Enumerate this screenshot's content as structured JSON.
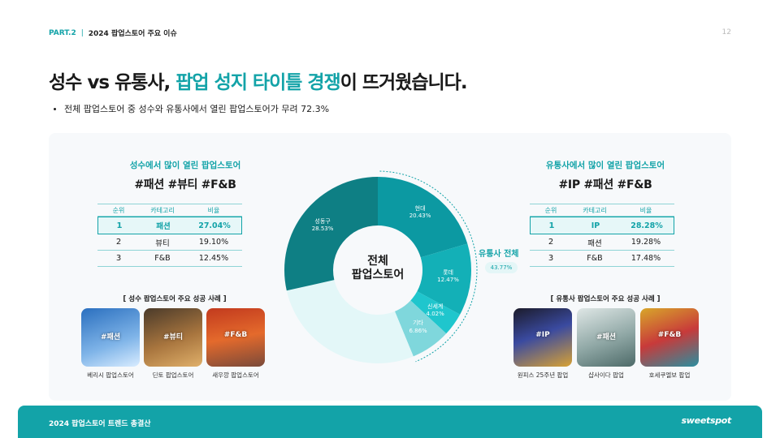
{
  "header": {
    "part": "PART.2",
    "separator": "|",
    "topic": "2024 팝업스토어 주요 이슈",
    "page": "12"
  },
  "title": {
    "pre": "성수 vs 유통사, ",
    "highlight": "팝업 성지 타이틀 경쟁",
    "post": "이 뜨거웠습니다."
  },
  "bullet": "전체 팝업스토어 중 성수와 유통사에서 열린 팝업스토어가 무려 72.3%",
  "left": {
    "subtitle": "성수에서 많이 열린 팝업스토어",
    "tags": "#패션 #뷰티 #F&B",
    "table_headers": [
      "순위",
      "카테고리",
      "비율"
    ],
    "rows": [
      {
        "rank": "1",
        "category": "패션",
        "ratio": "27.04%"
      },
      {
        "rank": "2",
        "category": "뷰티",
        "ratio": "19.10%"
      },
      {
        "rank": "3",
        "category": "F&B",
        "ratio": "12.45%"
      }
    ],
    "cases_title": "[ 성수 팝업스토어 주요 성공 사례 ]",
    "cases": [
      {
        "tag": "#패션",
        "caption": "베리시 팝업스토어"
      },
      {
        "tag": "#뷰티",
        "caption": "딘토 팝업스토어"
      },
      {
        "tag": "#F&B",
        "caption": "새우깡 팝업스토어"
      }
    ]
  },
  "right": {
    "subtitle": "유통사에서 많이 열린 팝업스토어",
    "tags": "#IP #패션 #F&B",
    "table_headers": [
      "순위",
      "카테고리",
      "비율"
    ],
    "rows": [
      {
        "rank": "1",
        "category": "IP",
        "ratio": "28.28%"
      },
      {
        "rank": "2",
        "category": "패션",
        "ratio": "19.28%"
      },
      {
        "rank": "3",
        "category": "F&B",
        "ratio": "17.48%"
      }
    ],
    "cases_title": "[ 유통사 팝업스토어 주요 성공 사례 ]",
    "cases": [
      {
        "tag": "#IP",
        "caption": "원피스 25주년  팝업"
      },
      {
        "tag": "#패션",
        "caption": "샵사이다 팝업"
      },
      {
        "tag": "#F&B",
        "caption": "호세쿠엘보 팝업"
      }
    ]
  },
  "center_label_lines": [
    "전체",
    "팝업스토어"
  ],
  "distribution": {
    "title": "유통사 전체",
    "value": "43.77%"
  },
  "chart_data": {
    "type": "pie",
    "title": "",
    "slices": [
      {
        "label": "현대",
        "value": 20.43,
        "display": "20.43%",
        "color": "#0c99a2"
      },
      {
        "label": "롯데",
        "value": 12.47,
        "display": "12.47%",
        "color": "#13b0b7"
      },
      {
        "label": "신세계",
        "value": 4.02,
        "display": "4.02%",
        "color": "#1fc6cd"
      },
      {
        "label": "기타",
        "value": 6.86,
        "display": "6.86%",
        "color": "#7fd7dc"
      },
      {
        "label": "",
        "value": 27.69,
        "display": "",
        "color": "#e3f7f8"
      },
      {
        "label": "성동구",
        "value": 28.53,
        "display": "28.53%",
        "color": "#0e7f84"
      }
    ]
  },
  "footer": {
    "text": "2024 팝업스토어 트렌드 총결산",
    "brand": "sweetspot"
  },
  "colors": {
    "accent": "#13a3a8",
    "footer": "#13a3a8"
  }
}
